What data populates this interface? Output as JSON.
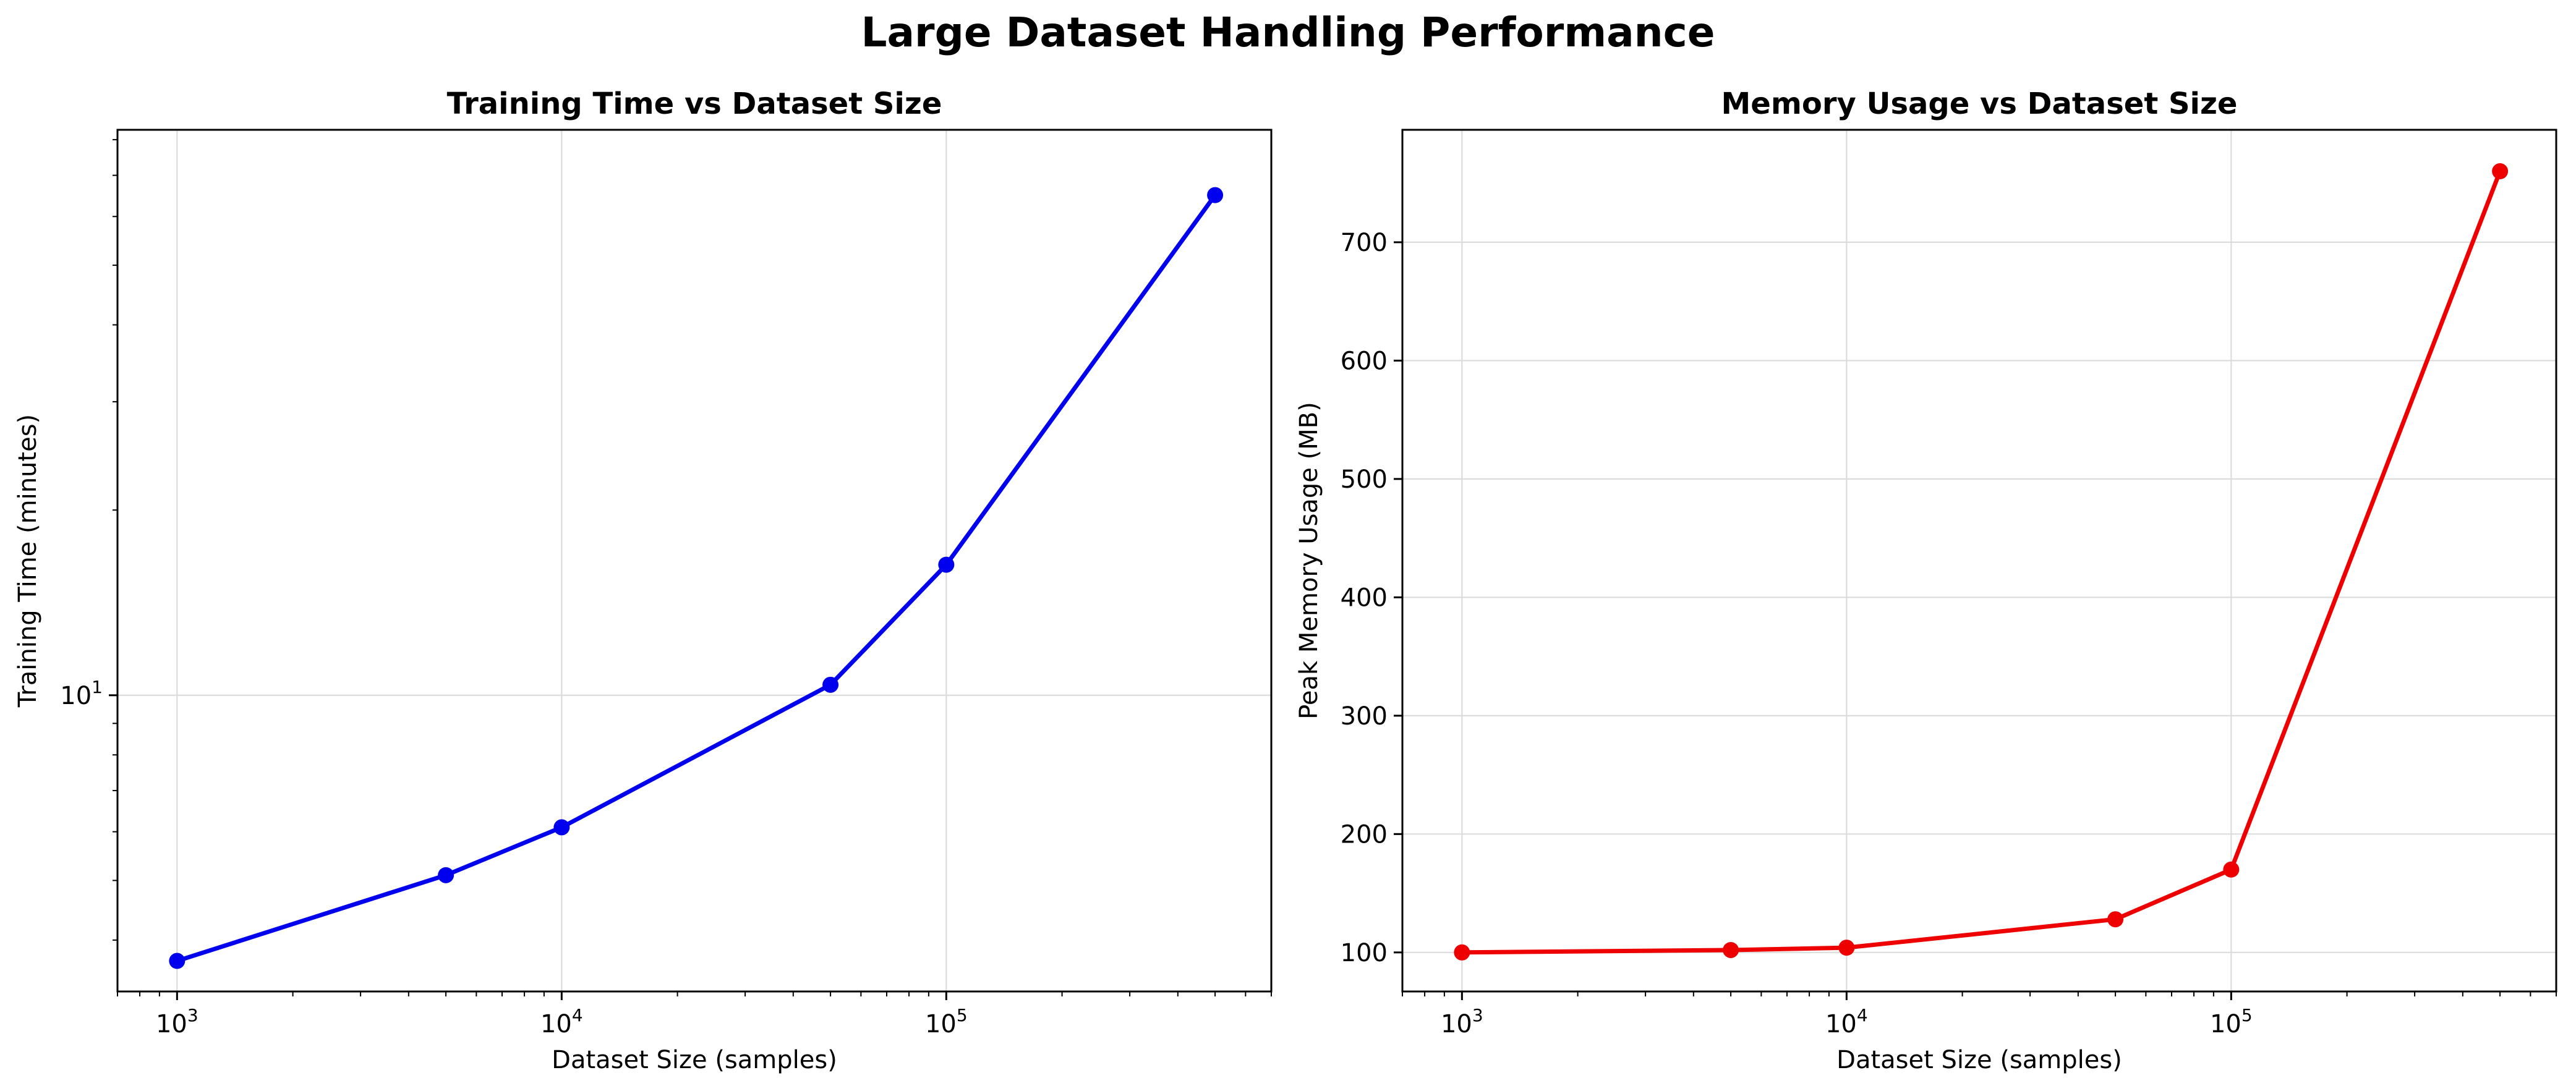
{
  "figure_title": "Large Dataset Handling Performance",
  "chart_data": [
    {
      "type": "line",
      "title": "Training Time vs Dataset Size",
      "xlabel": "Dataset Size (samples)",
      "ylabel": "Training Time (minutes)",
      "xscale": "log",
      "yscale": "log",
      "xlim": [
        700,
        700000
      ],
      "ylim": [
        3.3,
        83
      ],
      "x_ticks": [
        {
          "base": "10",
          "exp": "3",
          "value": 1000
        },
        {
          "base": "10",
          "exp": "4",
          "value": 10000
        },
        {
          "base": "10",
          "exp": "5",
          "value": 100000
        }
      ],
      "y_ticks": [
        {
          "base": "10",
          "exp": "1",
          "value": 10
        }
      ],
      "grid": true,
      "color": "#0000ee",
      "series": [
        {
          "x": [
            1000,
            5000,
            10000,
            50000,
            100000,
            500000
          ],
          "y": [
            3.7,
            5.1,
            6.1,
            10.4,
            16.3,
            65
          ]
        }
      ]
    },
    {
      "type": "line",
      "title": "Memory Usage vs Dataset Size",
      "xlabel": "Dataset Size (samples)",
      "ylabel": "Peak Memory Usage (MB)",
      "xscale": "log",
      "yscale": "linear",
      "xlim": [
        700,
        700000
      ],
      "ylim": [
        67,
        795
      ],
      "x_ticks": [
        {
          "base": "10",
          "exp": "3",
          "value": 1000
        },
        {
          "base": "10",
          "exp": "4",
          "value": 10000
        },
        {
          "base": "10",
          "exp": "5",
          "value": 100000
        }
      ],
      "y_ticks": [
        {
          "label": "100",
          "value": 100
        },
        {
          "label": "200",
          "value": 200
        },
        {
          "label": "300",
          "value": 300
        },
        {
          "label": "400",
          "value": 400
        },
        {
          "label": "500",
          "value": 500
        },
        {
          "label": "600",
          "value": 600
        },
        {
          "label": "700",
          "value": 700
        }
      ],
      "grid": true,
      "color": "#ee0000",
      "series": [
        {
          "x": [
            1000,
            5000,
            10000,
            50000,
            100000,
            500000
          ],
          "y": [
            100,
            102,
            104,
            128,
            170,
            760
          ]
        }
      ]
    }
  ]
}
